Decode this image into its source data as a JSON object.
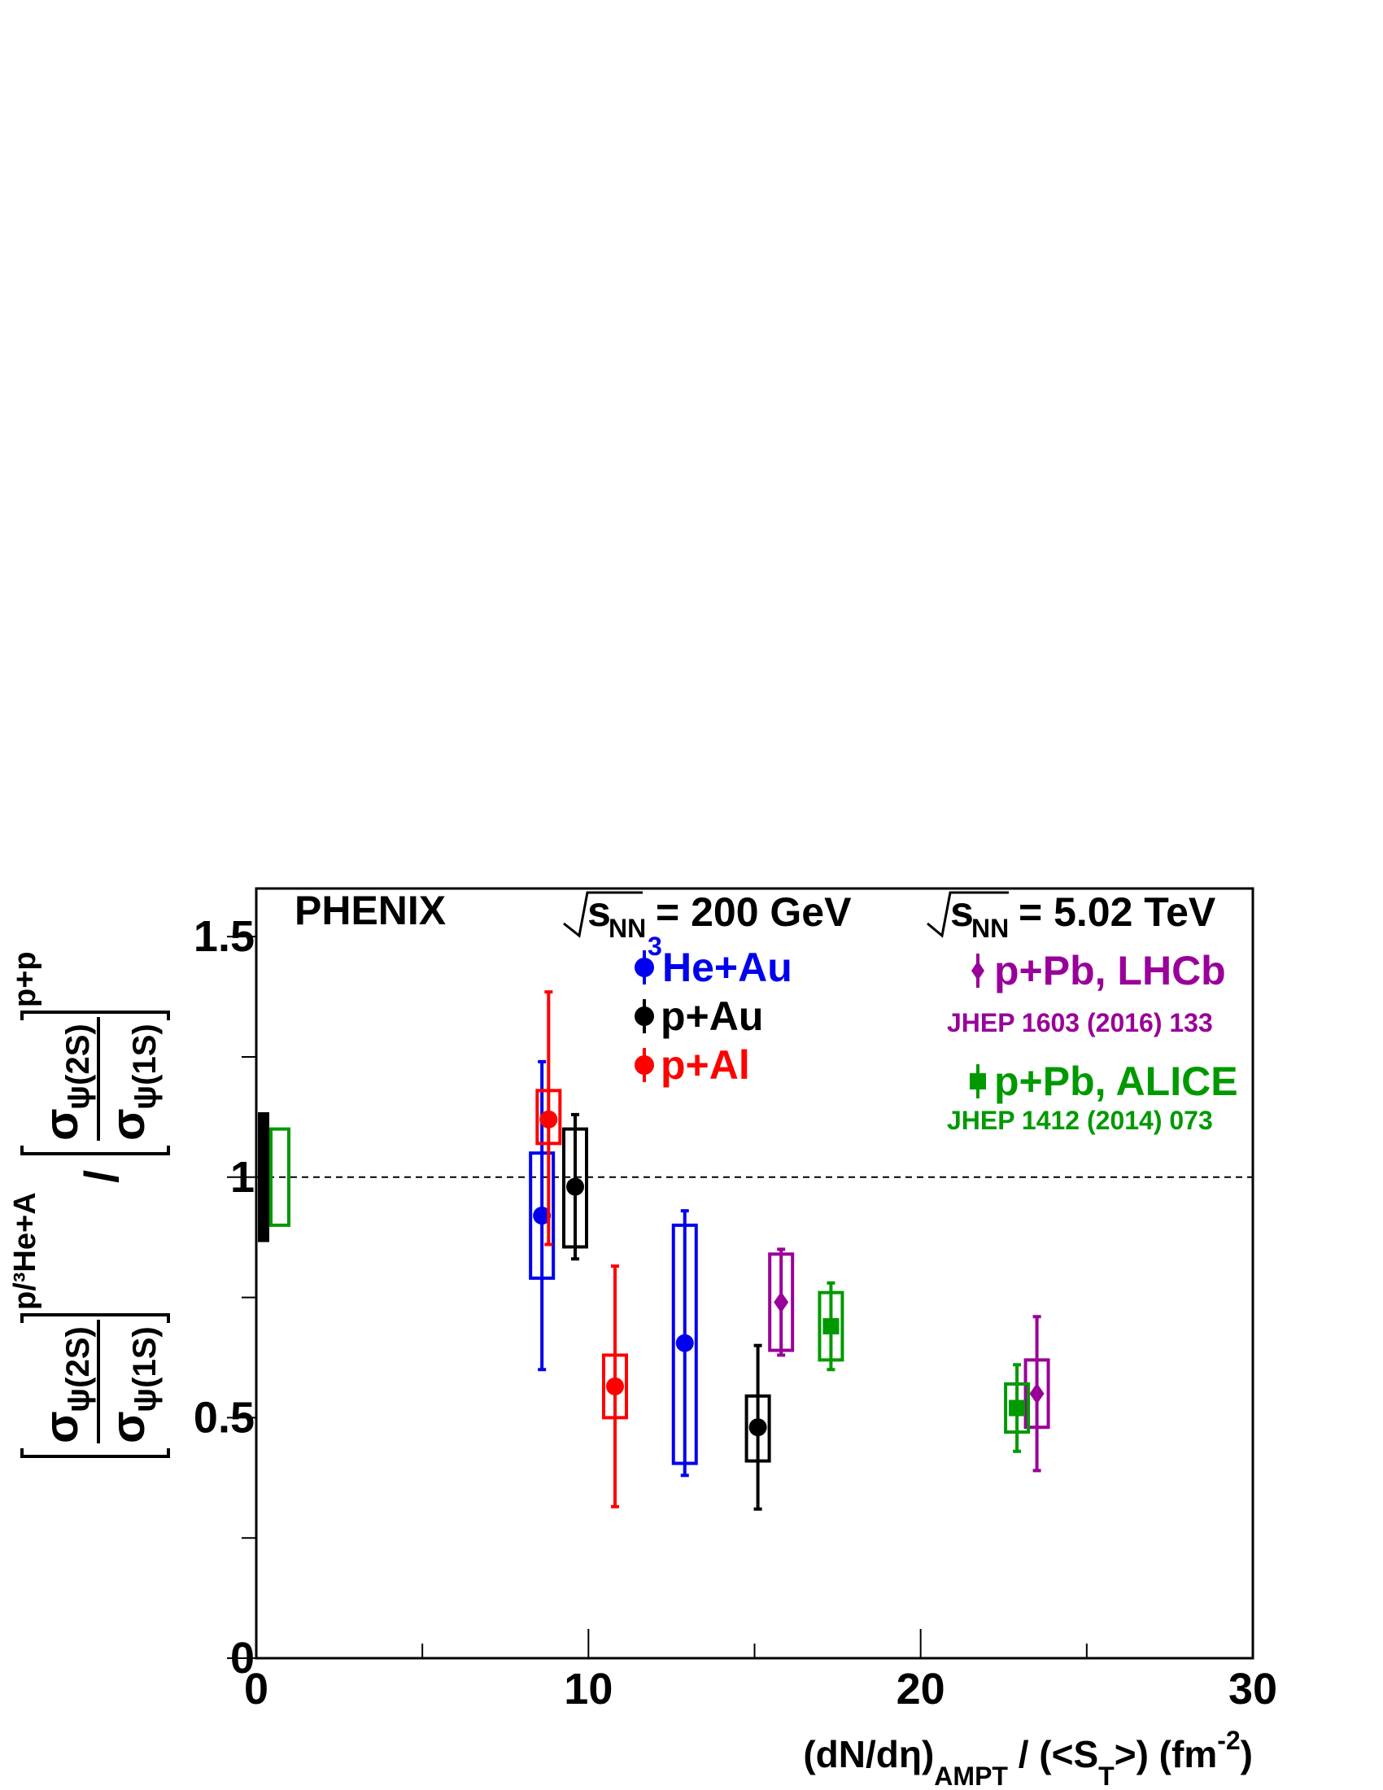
{
  "chart_data": {
    "type": "scatter",
    "xlabel": "(dN/dη)_AMPT / (<S_T>)  (fm^-2)",
    "xlabel_parts": {
      "main": "(dN/dη)",
      "sub1": "AMPT",
      "mid": " / (<S",
      "sub2": "T",
      "end": ">)  (fm",
      "sup": "-2",
      "close": ")"
    },
    "ylabel_parts": {
      "sigma": "σ",
      "psi2s": "ψ(2S)",
      "psi1s": "ψ(1S)",
      "sup_left": "p/³He+A",
      "slash": "/",
      "sup_right": "p+p"
    },
    "xlim": [
      0,
      30
    ],
    "ylim": [
      0,
      1.6
    ],
    "x_ticks": [
      "0",
      "10",
      "20",
      "30"
    ],
    "y_ticks": [
      "0",
      "0.5",
      "1",
      "1.5"
    ],
    "reference_line_y": 1,
    "normalization": [
      {
        "name": "phenix-pp-global",
        "y_low": 0.865,
        "y_high": 1.135,
        "filled": true,
        "color": "#000000"
      },
      {
        "name": "alice-pp-global",
        "y_low": 0.9,
        "y_high": 1.1,
        "filled": false,
        "color": "#009900"
      }
    ],
    "annotations": {
      "experiment": "PHENIX",
      "energy_rhic": {
        "sub": "NN",
        "value": "= 200 GeV"
      },
      "energy_lhc": {
        "sub": "NN",
        "value": "= 5.02 TeV"
      },
      "s_letter": "s",
      "lhcb_ref": "JHEP 1603 (2016) 133",
      "alice_ref": "JHEP 1412 (2014) 073"
    },
    "series": [
      {
        "name": "He+Au",
        "name_sup": "3",
        "marker": "circle",
        "color": "#0000ee",
        "points": [
          {
            "x": 8.6,
            "y": 0.92,
            "stat_low": 0.6,
            "stat_high": 1.24,
            "sys_low": 0.79,
            "sys_high": 1.05
          },
          {
            "x": 12.9,
            "y": 0.655,
            "stat_low": 0.38,
            "stat_high": 0.93,
            "sys_low": 0.405,
            "sys_high": 0.9
          }
        ]
      },
      {
        "name": "p+Au",
        "marker": "circle",
        "color": "#000000",
        "points": [
          {
            "x": 9.6,
            "y": 0.98,
            "stat_low": 0.83,
            "stat_high": 1.13,
            "sys_low": 0.855,
            "sys_high": 1.1
          },
          {
            "x": 15.1,
            "y": 0.48,
            "stat_low": 0.31,
            "stat_high": 0.65,
            "sys_low": 0.41,
            "sys_high": 0.545
          }
        ]
      },
      {
        "name": "p+Al",
        "marker": "circle",
        "color": "#ff0000",
        "points": [
          {
            "x": 8.8,
            "y": 1.12,
            "stat_low": 0.86,
            "stat_high": 1.385,
            "sys_low": 1.07,
            "sys_high": 1.18
          },
          {
            "x": 10.8,
            "y": 0.565,
            "stat_low": 0.315,
            "stat_high": 0.815,
            "sys_low": 0.5,
            "sys_high": 0.63
          }
        ]
      },
      {
        "name": "p+Pb, LHCb",
        "marker": "diamond",
        "color": "#990099",
        "points": [
          {
            "x": 15.8,
            "y": 0.74,
            "stat_low": 0.63,
            "stat_high": 0.85,
            "sys_low": 0.64,
            "sys_high": 0.84
          },
          {
            "x": 23.5,
            "y": 0.55,
            "stat_low": 0.39,
            "stat_high": 0.71,
            "sys_low": 0.48,
            "sys_high": 0.62
          }
        ]
      },
      {
        "name": "p+Pb, ALICE",
        "marker": "square",
        "color": "#009900",
        "points": [
          {
            "x": 17.3,
            "y": 0.69,
            "stat_low": 0.6,
            "stat_high": 0.78,
            "sys_low": 0.62,
            "sys_high": 0.76
          },
          {
            "x": 22.9,
            "y": 0.52,
            "stat_low": 0.43,
            "stat_high": 0.61,
            "sys_low": 0.47,
            "sys_high": 0.57
          }
        ]
      }
    ]
  }
}
